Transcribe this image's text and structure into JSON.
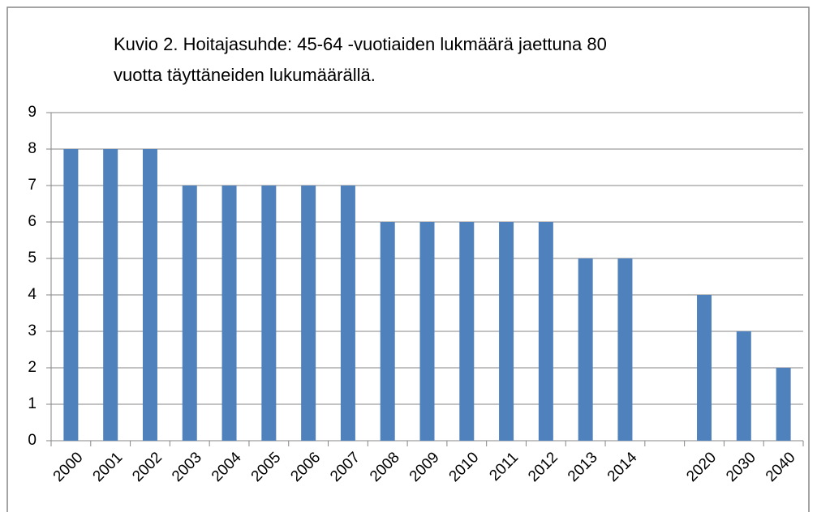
{
  "chart_data": {
    "type": "bar",
    "title": [
      "Kuvio 2. Hoitajasuhde: 45-64 -vuotiaiden lukmäärä jaettuna 80",
      "vuotta täyttäneiden lukumäärällä."
    ],
    "categories": [
      "2000",
      "2001",
      "2002",
      "2003",
      "2004",
      "2005",
      "2006",
      "2007",
      "2008",
      "2009",
      "2010",
      "2011",
      "2012",
      "2013",
      "2014",
      null,
      "2020",
      "2030",
      "2040"
    ],
    "values": [
      8,
      8,
      8,
      7,
      7,
      7,
      7,
      7,
      6,
      6,
      6,
      6,
      6,
      5,
      5,
      null,
      4,
      3,
      2
    ],
    "color": "#4f81bd",
    "ylim": [
      0,
      9
    ],
    "yticks": [
      0,
      1,
      2,
      3,
      4,
      5,
      6,
      7,
      8,
      9
    ],
    "grid": true
  }
}
